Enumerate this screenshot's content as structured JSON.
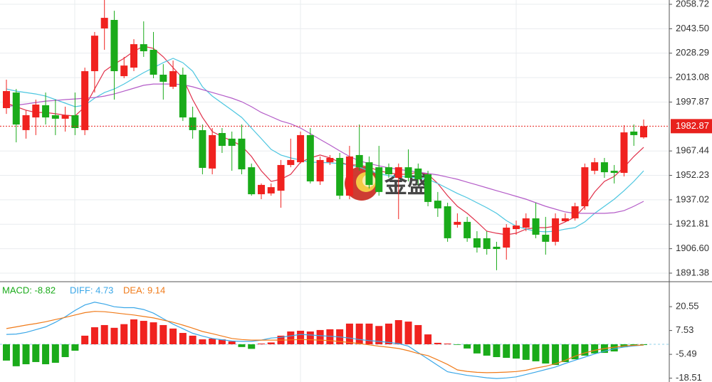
{
  "chart_data": [
    {
      "type": "candlestick",
      "categories": [
        null,
        null,
        null,
        null,
        null,
        null,
        null,
        null,
        null,
        null,
        null,
        null,
        null,
        null,
        null,
        null,
        null,
        null,
        null,
        null,
        null,
        null,
        null,
        null,
        null,
        null,
        null,
        null,
        null,
        null,
        null,
        null,
        null,
        null,
        null,
        null,
        null,
        null,
        null,
        null,
        null,
        null,
        null,
        null,
        null,
        null,
        null,
        null,
        null,
        null,
        null,
        null,
        null,
        null,
        null,
        null,
        null,
        null,
        null,
        null,
        null,
        null,
        null,
        null,
        null,
        null
      ],
      "open": [
        1994.1,
        2003.8,
        1980.4,
        1988.3,
        1995.9,
        1989.7,
        1987.5,
        1989.7,
        1980.4,
        2017.1,
        2043.7,
        2049.0,
        2014.0,
        2019.3,
        2033.9,
        2030.4,
        2014.9,
        2007.4,
        2014.9,
        1988.3,
        1980.4,
        1956.5,
        1978.6,
        1975.1,
        1975.1,
        1957.3,
        1940.5,
        1941.0,
        1942.7,
        1958.7,
        1960.4,
        1977.3,
        1948.5,
        1960.4,
        1963.1,
        1939.6,
        1964.9,
        1960.4,
        1957.3,
        1957.3,
        1950.7,
        1957.3,
        1956.5,
        1952.9,
        1936.5,
        1933.0,
        1921.5,
        1923.3,
        1913.1,
        1913.1,
        1907.8,
        1907.3,
        1918.8,
        1919.7,
        1925.5,
        1915.3,
        1910.9,
        1923.7,
        1925.5,
        1933.0,
        1955.1,
        1960.4,
        1955.1,
        1953.8,
        1979.5,
        1975.9
      ],
      "high": [
        2011.8,
        2006.0,
        1992.8,
        1999.4,
        2003.8,
        1999.4,
        1995.0,
        2003.8,
        2019.3,
        2041.5,
        2061.4,
        2054.7,
        2026.0,
        2037.0,
        2048.1,
        2041.5,
        2021.5,
        2023.7,
        2019.3,
        1995.0,
        1983.9,
        1981.7,
        1981.7,
        1979.5,
        1983.9,
        1959.6,
        1947.2,
        1947.2,
        1961.8,
        1975.1,
        1979.5,
        1981.7,
        1964.0,
        1964.9,
        1966.2,
        1970.6,
        1983.9,
        1964.0,
        1970.6,
        1959.6,
        1959.6,
        1968.4,
        1959.6,
        1955.1,
        1941.9,
        1935.2,
        1928.6,
        1926.4,
        1917.5,
        1917.5,
        1910.9,
        1921.9,
        1924.1,
        1928.6,
        1935.2,
        1926.4,
        1928.6,
        1928.6,
        1935.2,
        1959.6,
        1963.1,
        1963.1,
        1958.7,
        1983.5,
        1983.9,
        1987.0
      ],
      "low": [
        1990.5,
        1972.8,
        1975.1,
        1977.3,
        1983.9,
        1977.3,
        1979.5,
        1977.3,
        1977.3,
        2003.8,
        2030.4,
        1999.4,
        2012.7,
        2017.1,
        2026.0,
        2012.7,
        1999.4,
        2006.0,
        1986.1,
        1975.1,
        1952.9,
        1952.9,
        1966.2,
        1955.1,
        1952.9,
        1939.6,
        1937.4,
        1939.6,
        1932.1,
        1957.3,
        1959.6,
        1947.2,
        1946.3,
        1958.7,
        1937.4,
        1937.4,
        1955.1,
        1944.1,
        1939.6,
        1950.7,
        1925.0,
        1948.5,
        1946.3,
        1933.0,
        1926.4,
        1910.9,
        1919.7,
        1910.9,
        1904.2,
        1902.9,
        1893.2,
        1899.8,
        1915.3,
        1917.5,
        1913.1,
        1902.9,
        1908.6,
        1923.3,
        1924.1,
        1930.8,
        1952.9,
        1950.7,
        1947.2,
        1951.6,
        1970.6,
        1975.1
      ],
      "close": [
        2004.7,
        1983.9,
        1989.7,
        1996.3,
        1988.3,
        1987.5,
        1989.7,
        1981.7,
        2017.1,
        2039.2,
        2050.3,
        2017.1,
        2020.6,
        2033.9,
        2029.5,
        2014.9,
        2010.5,
        2017.1,
        1988.3,
        1980.4,
        1956.9,
        1977.3,
        1970.6,
        1970.6,
        1956.0,
        1940.5,
        1946.3,
        1944.9,
        1958.7,
        1961.8,
        1977.3,
        1948.5,
        1961.8,
        1963.1,
        1939.6,
        1964.0,
        1957.3,
        1946.3,
        1941.9,
        1952.9,
        1957.3,
        1950.7,
        1949.8,
        1935.7,
        1931.7,
        1913.1,
        1923.3,
        1913.1,
        1907.3,
        1906.4,
        1906.4,
        1919.7,
        1921.0,
        1925.5,
        1915.3,
        1910.9,
        1925.5,
        1925.5,
        1933.0,
        1957.3,
        1960.4,
        1954.2,
        1953.8,
        1979.0,
        1977.3,
        1982.87
      ],
      "up_color": "#f0221f",
      "down_color": "#1aab1a",
      "lines": [
        {
          "color": "#e0304a",
          "values": [
            1997.2,
            1995.0,
            1992.8,
            1991.4,
            1991.4,
            1990.6,
            1989.7,
            1989.2,
            1995.0,
            2006.0,
            2017.1,
            2021.5,
            2025.1,
            2029.5,
            2032.6,
            2031.3,
            2026.0,
            2019.3,
            2012.7,
            1999.4,
            1988.3,
            1979.5,
            1976.4,
            1973.7,
            1970.6,
            1964.0,
            1955.1,
            1948.5,
            1949.8,
            1952.9,
            1960.4,
            1963.1,
            1964.9,
            1963.1,
            1960.4,
            1958.7,
            1958.7,
            1957.3,
            1955.1,
            1953.8,
            1952.9,
            1952.9,
            1954.3,
            1952.9,
            1947.2,
            1939.6,
            1933.0,
            1928.6,
            1923.3,
            1917.5,
            1916.2,
            1915.3,
            1916.2,
            1918.8,
            1919.7,
            1919.7,
            1920.6,
            1923.3,
            1926.4,
            1933.0,
            1941.9,
            1948.5,
            1951.6,
            1957.3,
            1964.0,
            1969.7
          ]
        },
        {
          "color": "#4cc6e0",
          "values": [
            2006.0,
            2004.7,
            2003.8,
            2002.9,
            2001.6,
            1999.4,
            1997.2,
            1995.0,
            1995.9,
            2000.3,
            2003.8,
            2006.0,
            2009.1,
            2012.7,
            2016.2,
            2019.3,
            2022.4,
            2025.1,
            2022.4,
            2017.1,
            2007.4,
            2001.6,
            1997.2,
            1992.8,
            1988.3,
            1981.7,
            1975.1,
            1968.4,
            1964.9,
            1963.1,
            1961.8,
            1960.4,
            1960.4,
            1960.0,
            1959.6,
            1958.7,
            1957.3,
            1955.1,
            1953.4,
            1952.0,
            1951.6,
            1951.2,
            1950.7,
            1949.8,
            1947.2,
            1944.1,
            1941.0,
            1938.3,
            1935.2,
            1932.1,
            1928.6,
            1924.1,
            1920.6,
            1918.8,
            1917.5,
            1917.1,
            1917.5,
            1918.8,
            1919.7,
            1923.3,
            1928.6,
            1933.0,
            1937.4,
            1942.7,
            1948.5,
            1955.1
          ]
        },
        {
          "color": "#b45cc8",
          "values": [
            1995.0,
            1995.9,
            1996.7,
            1997.6,
            1998.5,
            1998.9,
            1999.4,
            1999.8,
            2000.3,
            2000.7,
            2001.6,
            2002.9,
            2004.7,
            2006.5,
            2008.3,
            2009.1,
            2009.1,
            2009.1,
            2008.7,
            2007.4,
            2005.6,
            2003.8,
            2002.1,
            2000.3,
            1998.1,
            1995.0,
            1991.4,
            1988.8,
            1986.1,
            1984.3,
            1981.7,
            1978.2,
            1974.6,
            1971.1,
            1967.5,
            1964.0,
            1961.3,
            1959.6,
            1958.2,
            1956.9,
            1956.0,
            1955.1,
            1954.3,
            1953.4,
            1952.5,
            1951.2,
            1949.8,
            1948.0,
            1946.3,
            1944.5,
            1942.7,
            1941.0,
            1939.2,
            1937.4,
            1935.2,
            1933.0,
            1931.2,
            1929.5,
            1928.6,
            1928.6,
            1928.6,
            1928.6,
            1929.0,
            1930.3,
            1933.0,
            1936.1
          ]
        }
      ],
      "last_price": 1982.87,
      "last_price_color": "#e8211d",
      "ylim": [
        1886.5,
        2061.4
      ],
      "yticks": [
        2058.72,
        {
          "value": 2043.5,
          "label": "2043.50"
        },
        2028.29,
        2013.08,
        1997.87,
        1967.44,
        1952.23,
        1937.02,
        1921.81,
        {
          "value": 1906.6,
          "label": "1906.60"
        },
        1891.38
      ],
      "grid": true,
      "watermark": "金盛"
    },
    {
      "type": "macd",
      "y2lim": [
        -20.6,
        33.8
      ],
      "y2ticks": [
        20.55,
        7.53,
        -5.49,
        -18.51
      ],
      "series": [
        {
          "name": "MACD: -8.82",
          "color": "#1aab1a",
          "up_color": "#f0221f",
          "down_color": "#1aab1a",
          "kind": "histogram",
          "values": [
            -8.9,
            -12.0,
            -10.9,
            -9.7,
            -10.9,
            -10.1,
            -7.0,
            -3.5,
            4.7,
            9.3,
            10.5,
            9.0,
            11.0,
            13.6,
            12.8,
            12.0,
            10.5,
            8.6,
            6.2,
            4.7,
            2.7,
            3.1,
            2.7,
            1.6,
            -1.5,
            -2.5,
            0.4,
            1.0,
            4.7,
            7.0,
            7.4,
            7.0,
            7.8,
            8.2,
            8.2,
            11.3,
            11.3,
            11.3,
            10.0,
            11.3,
            13.2,
            12.4,
            10.5,
            5.4,
            0.8,
            0.4,
            -0.3,
            -2.3,
            -5.0,
            -6.2,
            -7.0,
            -7.4,
            -7.8,
            -8.5,
            -9.3,
            -10.5,
            -11.3,
            -9.7,
            -8.2,
            -6.2,
            -5.0,
            -4.7,
            -3.9,
            -1.6,
            -0.8,
            -0.4
          ]
        },
        {
          "name": "DIFF: 4.73",
          "color": "#3aa7e8",
          "kind": "line",
          "values": [
            5.4,
            5.6,
            6.5,
            8,
            9.5,
            12,
            15,
            18.5,
            21.5,
            23,
            22,
            20.5,
            20,
            20,
            19,
            17,
            14,
            11,
            8.5,
            6,
            4.5,
            3.2,
            2.5,
            1.8,
            1.6,
            1.6,
            2.3,
            3.4,
            3.8,
            4.6,
            5.4,
            5.1,
            4.7,
            4.4,
            4.0,
            3.4,
            2.6,
            2.0,
            1.6,
            1.0,
            0.4,
            -1,
            -4.5,
            -8,
            -11.5,
            -15,
            -16,
            -17,
            -17.6,
            -18.3,
            -18.7,
            -18.4,
            -17.8,
            -16.5,
            -15.2,
            -13.8,
            -12.4,
            -10.5,
            -8.7,
            -7,
            -5.3,
            -3.8,
            -2.4,
            -1.5,
            -0.9,
            -0.4
          ]
        },
        {
          "name": "DEA: 9.14",
          "color": "#f07b1a",
          "kind": "line",
          "values": [
            8.6,
            9.5,
            10.5,
            11.3,
            12.3,
            13.5,
            14.7,
            16,
            17.3,
            18,
            17.8,
            17.2,
            16.6,
            16,
            15.2,
            14.4,
            13.2,
            12,
            10.5,
            8.8,
            7,
            5.8,
            4.5,
            3.2,
            2.6,
            2.3,
            2.3,
            2.3,
            2.3,
            2.4,
            2.6,
            2.5,
            2.3,
            2.0,
            1.5,
            1.0,
            0.4,
            -0.3,
            -1.0,
            -1.6,
            -2.3,
            -3.5,
            -5.0,
            -6.2,
            -8.5,
            -11,
            -14,
            -14.8,
            -15.3,
            -15.5,
            -15.4,
            -15.2,
            -14.9,
            -14.2,
            -13.0,
            -12.0,
            -10.6,
            -8.8,
            -6.5,
            -4.7,
            -3.3,
            -2.3,
            -1.6,
            -0.9,
            -0.6,
            -0.4
          ]
        }
      ],
      "grid": true
    }
  ]
}
